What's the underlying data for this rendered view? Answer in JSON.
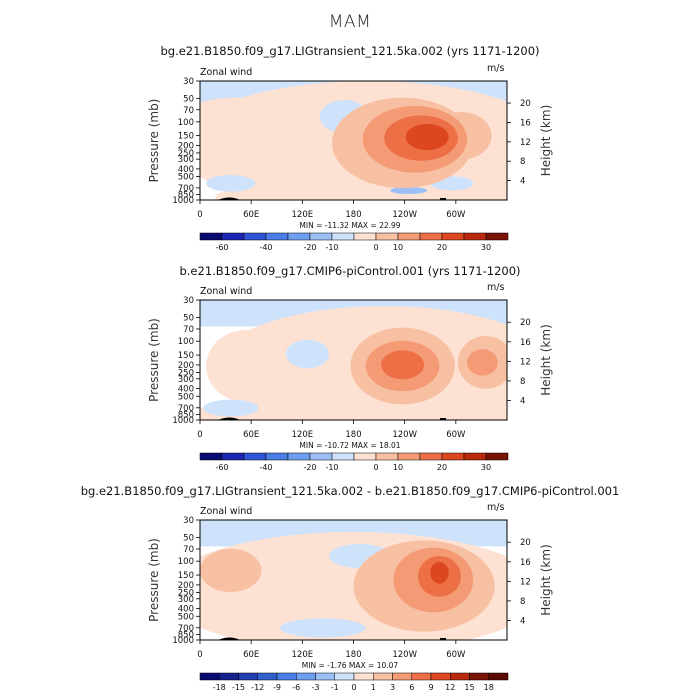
{
  "figure": {
    "title": "MAM"
  },
  "axes_common": {
    "left_axis_label": "Pressure (mb)",
    "right_axis_label": "Height (km)",
    "field_label": "Zonal wind",
    "units_label": "m/s",
    "pressure_ticks": [
      "30",
      "50",
      "70",
      "100",
      "150",
      "200",
      "250",
      "300",
      "400",
      "500",
      "700",
      "850",
      "1000"
    ],
    "height_ticks": [
      "20",
      "16",
      "12",
      "8",
      "4"
    ],
    "lon_ticks": [
      "0",
      "60E",
      "120E",
      "180",
      "120W",
      "60W"
    ]
  },
  "chart_data": [
    {
      "type": "heatmap",
      "title": "bg.e21.B1850.f09_g17.LIGtransient_121.5ka.002 (yrs 1171-1200)",
      "xlabel": "",
      "ylabel": "Pressure (mb)",
      "y2label": "Height (km)",
      "stats": "MIN = -11.32   MAX = 22.99",
      "min": -11.32,
      "max": 22.99,
      "colorbar_ticks": [
        "-60",
        "-40",
        "-20",
        "-10",
        "0",
        "10",
        "20",
        "30"
      ],
      "colorbar_colors": [
        "#0a0a73",
        "#1c28b4",
        "#2f54d6",
        "#4a7de6",
        "#6f9ff0",
        "#9cc0f6",
        "#cfe2fb",
        "#fde1d3",
        "#f8c0a3",
        "#f49b75",
        "#ec6f46",
        "#dc4720",
        "#b92a0c",
        "#7a1206"
      ]
    },
    {
      "type": "heatmap",
      "title": "b.e21.B1850.f09_g17.CMIP6-piControl.001 (yrs 1171-1200)",
      "xlabel": "",
      "ylabel": "Pressure (mb)",
      "y2label": "Height (km)",
      "stats": "MIN = -10.72   MAX = 18.01",
      "min": -10.72,
      "max": 18.01,
      "colorbar_ticks": [
        "-60",
        "-40",
        "-20",
        "-10",
        "0",
        "10",
        "20",
        "30"
      ],
      "colorbar_colors": [
        "#0a0a73",
        "#1c28b4",
        "#2f54d6",
        "#4a7de6",
        "#6f9ff0",
        "#9cc0f6",
        "#cfe2fb",
        "#fde1d3",
        "#f8c0a3",
        "#f49b75",
        "#ec6f46",
        "#dc4720",
        "#b92a0c",
        "#7a1206"
      ]
    },
    {
      "type": "heatmap",
      "title": "bg.e21.B1850.f09_g17.LIGtransient_121.5ka.002 - b.e21.B1850.f09_g17.CMIP6-piControl.001",
      "xlabel": "",
      "ylabel": "Pressure (mb)",
      "y2label": "Height (km)",
      "stats": "MIN = -1.76   MAX = 10.07",
      "min": -1.76,
      "max": 10.07,
      "colorbar_ticks": [
        "-18",
        "-15",
        "-12",
        "-9",
        "-6",
        "-3",
        "-1",
        "0",
        "1",
        "3",
        "6",
        "9",
        "12",
        "15",
        "18"
      ],
      "colorbar_colors": [
        "#0a0a73",
        "#17228f",
        "#2340b2",
        "#3060cc",
        "#4a7de6",
        "#6f9ff0",
        "#9cc0f6",
        "#cfe2fb",
        "#fde1d3",
        "#f8c0a3",
        "#f49b75",
        "#ec6f46",
        "#dc4720",
        "#b92a0c",
        "#7a1206",
        "#5a0a02"
      ]
    }
  ]
}
